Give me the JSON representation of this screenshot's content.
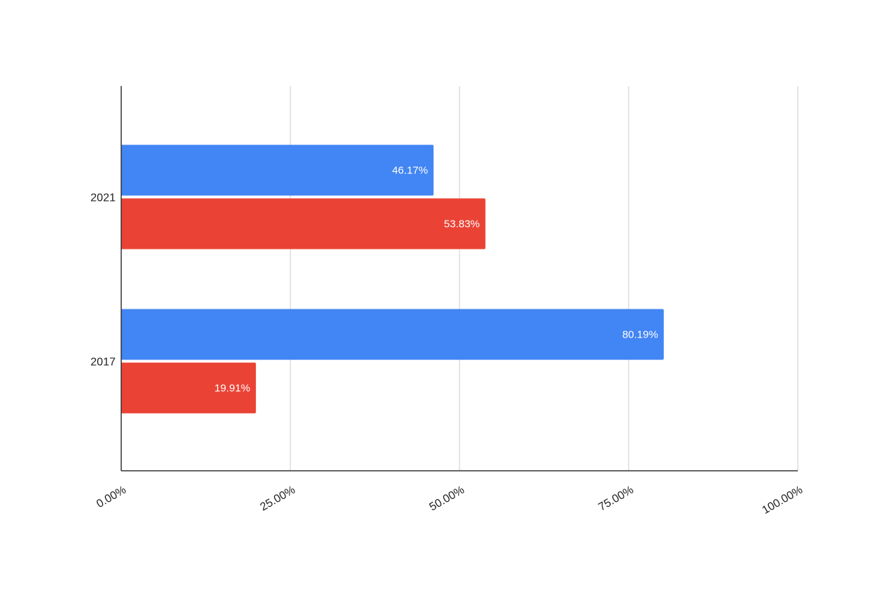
{
  "chart_data": {
    "type": "bar",
    "orientation": "horizontal",
    "categories": [
      "2021",
      "2017"
    ],
    "series": [
      {
        "color": "#4285f4",
        "values": [
          46.17,
          80.19
        ],
        "labels": [
          "46.17%",
          "80.19%"
        ]
      },
      {
        "color": "#ea4335",
        "values": [
          53.83,
          19.91
        ],
        "labels": [
          "53.83%",
          "19.91%"
        ]
      }
    ],
    "x_ticks": [
      {
        "value": 0,
        "label": "0.00%"
      },
      {
        "value": 25,
        "label": "25.00%"
      },
      {
        "value": 50,
        "label": "50.00%"
      },
      {
        "value": 75,
        "label": "75.00%"
      },
      {
        "value": 100,
        "label": "100.00%"
      }
    ],
    "xlim": [
      0,
      100
    ],
    "grid": true,
    "legend": "none",
    "title": "",
    "xlabel": "",
    "ylabel": ""
  }
}
